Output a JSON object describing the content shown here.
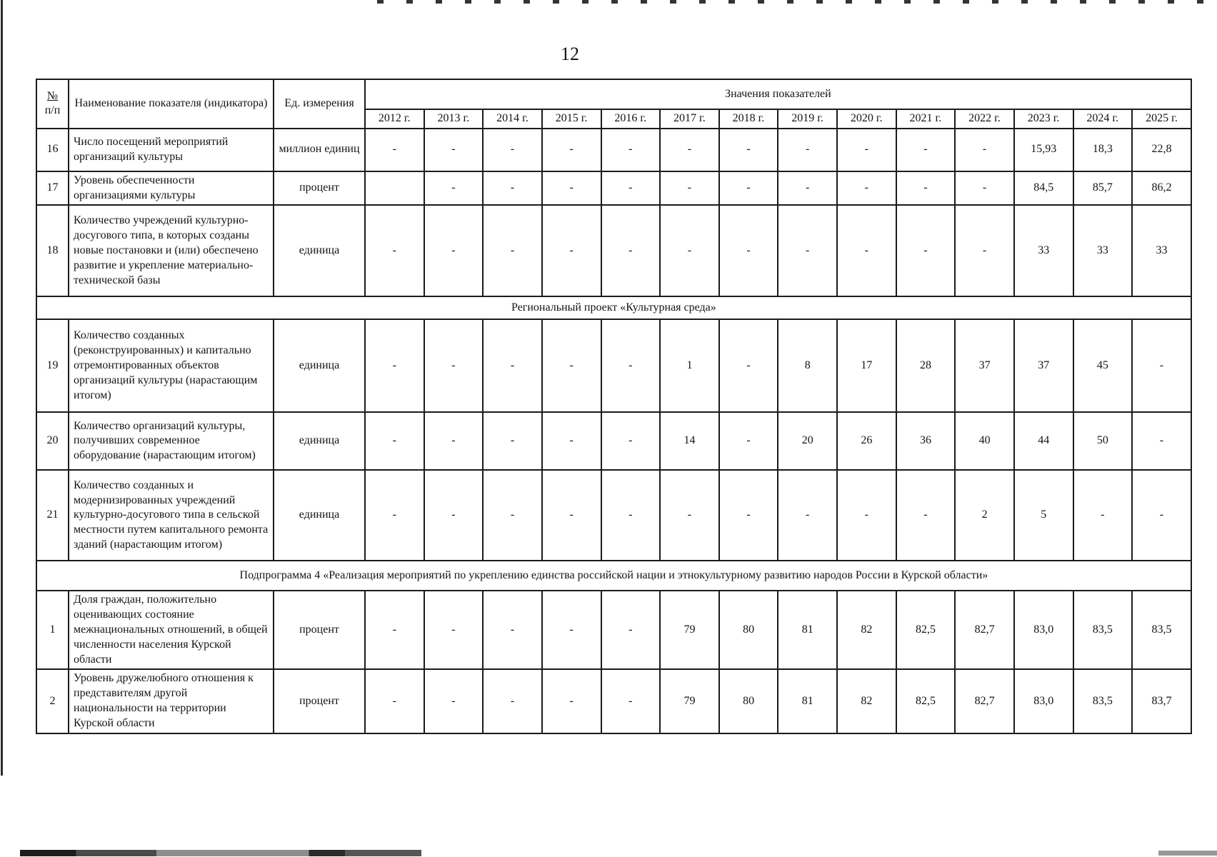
{
  "page": {
    "number": "12"
  },
  "table": {
    "header": {
      "col_num_top": "№",
      "col_num_bottom": "п/п",
      "col_name": "Наименование показателя (индикатора)",
      "col_unit": "Ед. измерения",
      "values_title": "Значения показателей",
      "years": [
        "2012 г.",
        "2013 г.",
        "2014 г.",
        "2015 г.",
        "2016 г.",
        "2017 г.",
        "2018 г.",
        "2019 г.",
        "2020 г.",
        "2021 г.",
        "2022 г.",
        "2023 г.",
        "2024 г.",
        "2025 г."
      ]
    },
    "rows": [
      {
        "type": "data",
        "num": "16",
        "name": "Число посещений мероприятий организаций культуры",
        "unit": "миллион единиц",
        "values": [
          "-",
          "-",
          "-",
          "-",
          "-",
          "-",
          "-",
          "-",
          "-",
          "-",
          "-",
          "15,93",
          "18,3",
          "22,8"
        ]
      },
      {
        "type": "data",
        "num": "17",
        "name": "Уровень обеспеченности организациями культуры",
        "unit": "процент",
        "values": [
          "",
          "-",
          "-",
          "-",
          "-",
          "-",
          "-",
          "-",
          "-",
          "-",
          "-",
          "84,5",
          "85,7",
          "86,2"
        ]
      },
      {
        "type": "data",
        "num": "18",
        "name": "Количество учреждений культурно-досугового типа, в которых созданы новые постановки и (или) обеспечено развитие и укрепление материально-технической базы",
        "unit": "единица",
        "values": [
          "-",
          "-",
          "-",
          "-",
          "-",
          "-",
          "-",
          "-",
          "-",
          "-",
          "-",
          "33",
          "33",
          "33"
        ]
      },
      {
        "type": "section",
        "title": "Региональный проект «Культурная среда»"
      },
      {
        "type": "data",
        "num": "19",
        "name": "Количество созданных (реконструированных) и капитально отремонтированных объектов организаций культуры (нарастающим итогом)",
        "unit": "единица",
        "values": [
          "-",
          "-",
          "-",
          "-",
          "-",
          "1",
          "-",
          "8",
          "17",
          "28",
          "37",
          "37",
          "45",
          "-"
        ]
      },
      {
        "type": "data",
        "num": "20",
        "name": "Количество организаций культуры, получивших современное оборудование (нарастающим итогом)",
        "unit": "единица",
        "values": [
          "-",
          "-",
          "-",
          "-",
          "-",
          "14",
          "-",
          "20",
          "26",
          "36",
          "40",
          "44",
          "50",
          "-"
        ]
      },
      {
        "type": "data",
        "num": "21",
        "name": "Количество созданных и модернизированных учреждений культурно-досугового типа в сельской местности путем капитального ремонта зданий (нарастающим итогом)",
        "unit": "единица",
        "values": [
          "-",
          "-",
          "-",
          "-",
          "-",
          "-",
          "-",
          "-",
          "-",
          "-",
          "2",
          "5",
          "-",
          "-"
        ]
      },
      {
        "type": "section",
        "title": "Подпрограмма 4 «Реализация мероприятий по укреплению единства российской нации и этнокультурному развитию народов России в Курской области»"
      },
      {
        "type": "data",
        "num": "1",
        "name": "Доля граждан, положительно оценивающих состояние межнациональных отношений, в общей численности населения Курской области",
        "unit": "процент",
        "values": [
          "-",
          "-",
          "-",
          "-",
          "-",
          "79",
          "80",
          "81",
          "82",
          "82,5",
          "82,7",
          "83,0",
          "83,5",
          "83,5"
        ]
      },
      {
        "type": "data",
        "num": "2",
        "name": "Уровень дружелюбного отношения к представителям другой национальности на территории Курской области",
        "unit": "процент",
        "values": [
          "-",
          "-",
          "-",
          "-",
          "-",
          "79",
          "80",
          "81",
          "82",
          "82,5",
          "82,7",
          "83,0",
          "83,5",
          "83,7"
        ]
      }
    ]
  }
}
